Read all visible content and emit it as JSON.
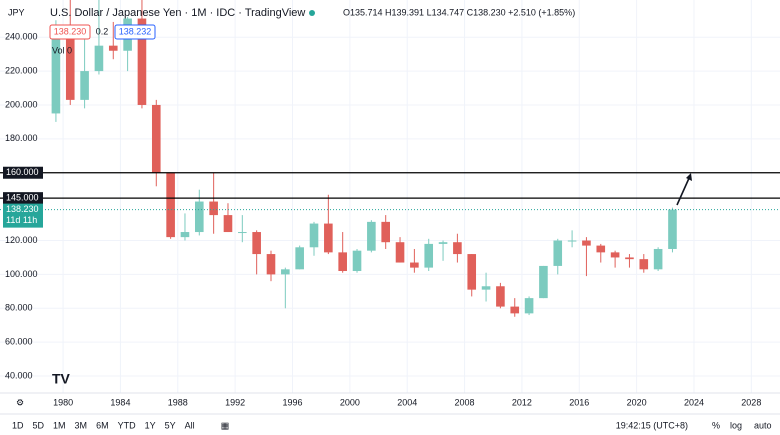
{
  "header": {
    "symbol": "JPY",
    "title": "U.S. Dollar / Japanese Yen · 1M · IDC · TradingView",
    "ohlc": "O135.714 H139.391 L134.747 C138.230 +2.510 (+1.85%)",
    "sell": "138.230",
    "spread": "0.2",
    "buy": "138.232",
    "volume": "Vol 0"
  },
  "chart_data": {
    "type": "candlestick",
    "x": [
      1979,
      1980,
      1981,
      1982,
      1983,
      1984,
      1985,
      1986,
      1987,
      1988,
      1989,
      1990,
      1991,
      1992,
      1993,
      1994,
      1995,
      1996,
      1997,
      1998,
      1999,
      2000,
      2001,
      2002,
      2003,
      2004,
      2005,
      2006,
      2007,
      2008,
      2009,
      2010,
      2011,
      2012,
      2013,
      2014,
      2015,
      2016,
      2017,
      2018,
      2019,
      2020,
      2021,
      2022
    ],
    "open": [
      195,
      240,
      203,
      220,
      235,
      232,
      251,
      200,
      160,
      122,
      125,
      143,
      135,
      125,
      125,
      112,
      100,
      103,
      116,
      130,
      113,
      102,
      114,
      131,
      119,
      107,
      104,
      118,
      119,
      112,
      91,
      93,
      81,
      77,
      86,
      105,
      120,
      120,
      117,
      113,
      110,
      109,
      103,
      115
    ],
    "high": [
      250,
      264,
      247,
      278,
      249,
      252,
      263,
      203,
      160,
      136,
      150,
      160,
      142,
      135,
      126,
      114,
      104,
      117,
      131,
      147,
      125,
      115,
      132,
      135,
      122,
      115,
      121,
      120,
      124,
      112,
      101,
      95,
      86,
      87,
      105,
      121,
      126,
      122,
      118,
      114,
      112,
      112,
      116,
      139.4
    ],
    "low": [
      190,
      200,
      198,
      218,
      227,
      220,
      198,
      152,
      121,
      120,
      123,
      124,
      125,
      119,
      100,
      96,
      80,
      103,
      111,
      112,
      101,
      101,
      113,
      115,
      107,
      101,
      102,
      108,
      107,
      87,
      84,
      80,
      75,
      76,
      86,
      100,
      116,
      99,
      107,
      104,
      104,
      101,
      102,
      113
    ],
    "close": [
      240,
      203,
      220,
      235,
      232,
      251,
      200,
      160,
      122,
      125,
      143,
      135,
      125,
      125,
      112,
      100,
      103,
      116,
      130,
      113,
      102,
      114,
      131,
      119,
      107,
      104,
      118,
      119,
      112,
      91,
      93,
      81,
      77,
      86,
      105,
      120,
      120,
      117,
      113,
      110,
      109,
      103,
      115,
      138.23
    ],
    "up_color": "#7ccbbf",
    "down_color": "#e0605a",
    "xlim": [
      1975.6,
      2030
    ],
    "ylim": [
      30,
      259
    ],
    "xticks": [
      1980,
      1984,
      1988,
      1992,
      1996,
      2000,
      2004,
      2008,
      2012,
      2016,
      2020,
      2024,
      2028
    ],
    "yticks": [
      {
        "value": 240,
        "label": "240.000"
      },
      {
        "value": 220,
        "label": "220.000"
      },
      {
        "value": 200,
        "label": "200.000"
      },
      {
        "value": 180,
        "label": "180.000"
      },
      {
        "value": 120,
        "label": "120.000"
      },
      {
        "value": 100,
        "label": "100.000"
      },
      {
        "value": 80,
        "label": "80.000"
      },
      {
        "value": 60,
        "label": "60.000"
      },
      {
        "value": 40,
        "label": "40.000"
      }
    ],
    "hlines": [
      {
        "value": 160,
        "label": "160.000"
      },
      {
        "value": 145,
        "label": "145.000"
      }
    ],
    "last_price": {
      "value": 138.23,
      "label": "138.230",
      "countdown": "11d 11h"
    },
    "grid": true
  },
  "toolbar": {
    "ranges": [
      "1D",
      "5D",
      "1M",
      "3M",
      "6M",
      "YTD",
      "1Y",
      "5Y",
      "All"
    ],
    "time": "19:42:15 (UTC+8)",
    "options": [
      "%",
      "log",
      "auto"
    ]
  }
}
